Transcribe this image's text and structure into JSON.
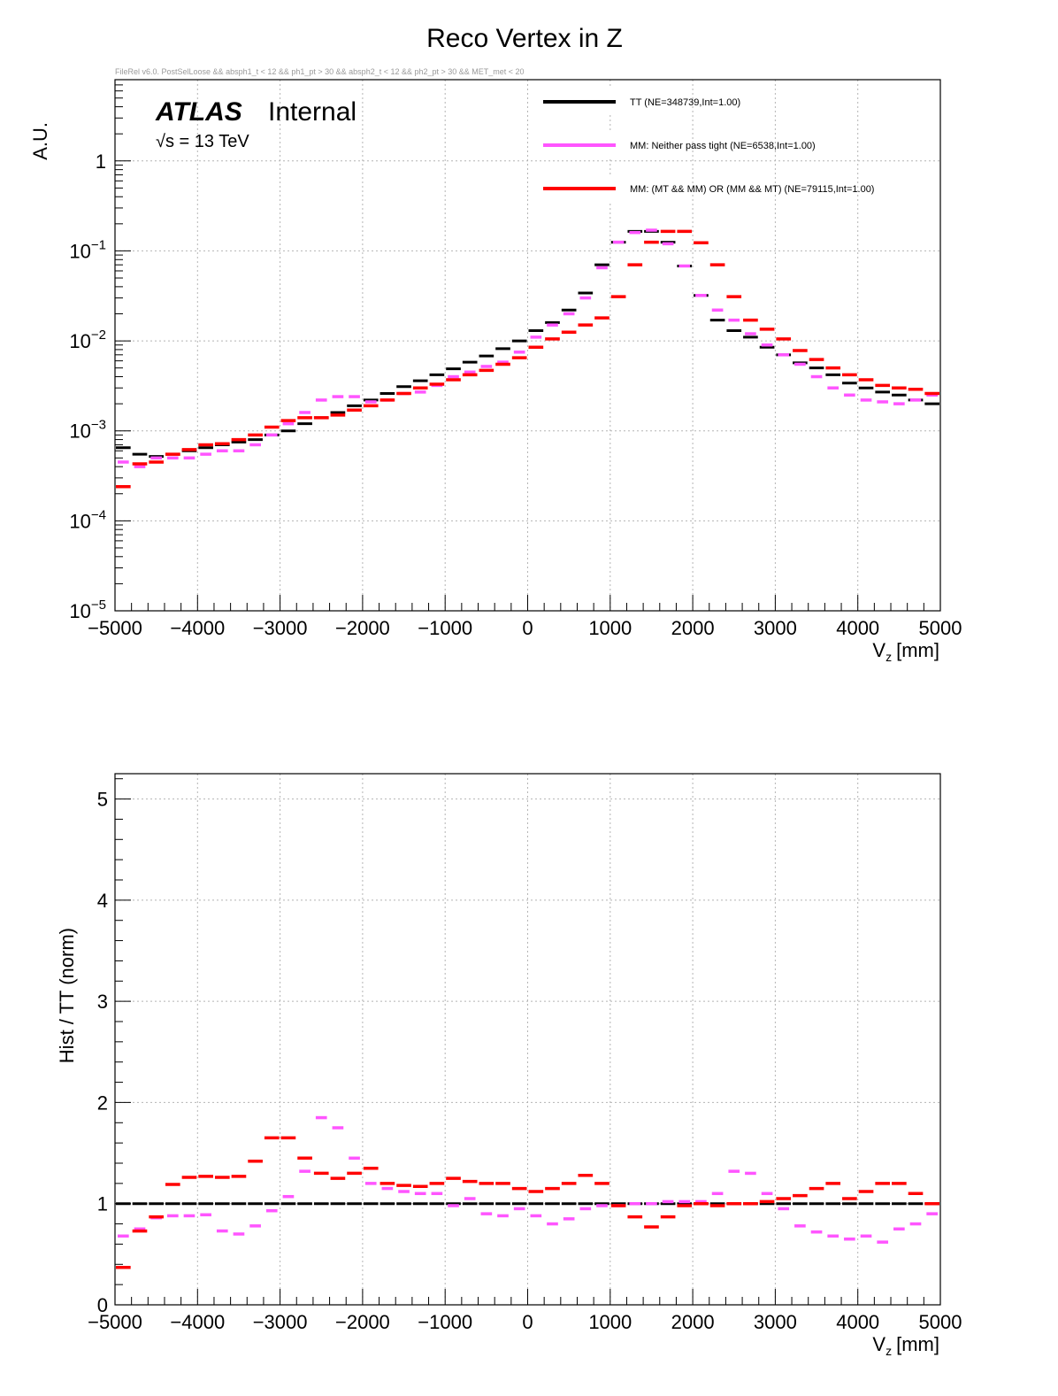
{
  "title": "Reco Vertex in Z",
  "cut_text": "FileRel v6.0. PostSelLoose && absph1_t < 12 && ph1_pt > 30 && absph2_t < 12 && ph2_pt > 30 && MET_met < 20",
  "atlas": {
    "label": "ATLAS",
    "status": "Internal",
    "energy": "√s = 13 TeV"
  },
  "colors": {
    "tt": "#000000",
    "mm_neither": "#ff55ff",
    "mm_mixed": "#ff0000",
    "grid": "#b4b4b4",
    "frame": "#000000"
  },
  "legend": [
    {
      "key": "tt",
      "label": "TT (NE=348739,Int=1.00)"
    },
    {
      "key": "mm_neither",
      "label": "MM: Neither pass tight (NE=6538,Int=1.00)"
    },
    {
      "key": "mm_mixed",
      "label": "MM: (MT && MM) OR (MM && MT) (NE=79115,Int=1.00)"
    }
  ],
  "chart_data": [
    {
      "type": "histogram",
      "title": "Reco Vertex in Z",
      "xlabel_main": "V",
      "xlabel_sub": "z",
      "xlabel_unit": "[mm]",
      "ylabel": "A.U.",
      "yscale": "log",
      "xlim": [
        -5000,
        5000
      ],
      "ylim": [
        1e-05,
        8
      ],
      "grid": true,
      "xticks": [
        -5000,
        -4000,
        -3000,
        -2000,
        -1000,
        0,
        1000,
        2000,
        3000,
        4000,
        5000
      ],
      "xtick_labels": [
        "−5000",
        "−4000",
        "−3000",
        "−2000",
        "−1000",
        "0",
        "1000",
        "2000",
        "3000",
        "4000",
        "5000"
      ],
      "yticks": [
        1e-05,
        0.0001,
        0.001,
        0.01,
        0.1,
        1
      ],
      "ytick_labels": [
        {
          "base": "10",
          "exp": "−5"
        },
        {
          "base": "10",
          "exp": "−4"
        },
        {
          "base": "10",
          "exp": "−3"
        },
        {
          "base": "10",
          "exp": "−2"
        },
        {
          "base": "10",
          "exp": "−1"
        },
        {
          "base": "1",
          "exp": ""
        }
      ],
      "bins": {
        "start": -5000,
        "width": 200,
        "count": 50
      },
      "series": [
        {
          "key": "tt",
          "name": "TT (NE=348739,Int=1.00)",
          "values": [
            0.00065,
            0.00055,
            0.00052,
            0.00055,
            0.0006,
            0.00065,
            0.0007,
            0.00075,
            0.0008,
            0.0009,
            0.001,
            0.0012,
            0.0014,
            0.0016,
            0.0019,
            0.0022,
            0.0026,
            0.0031,
            0.0036,
            0.0042,
            0.0049,
            0.0058,
            0.0068,
            0.0082,
            0.01,
            0.013,
            0.016,
            0.022,
            0.034,
            0.07,
            0.125,
            0.165,
            0.165,
            0.125,
            0.068,
            0.032,
            0.017,
            0.013,
            0.011,
            0.0085,
            0.007,
            0.0057,
            0.005,
            0.0042,
            0.0034,
            0.003,
            0.0027,
            0.0025,
            0.0022,
            0.002
          ]
        },
        {
          "key": "mm_neither",
          "name": "MM: Neither pass tight (NE=6538,Int=1.00)",
          "values": [
            0.00045,
            0.0004,
            0.0005,
            0.0005,
            0.0005,
            0.00055,
            0.0006,
            0.0006,
            0.0007,
            0.0009,
            0.0012,
            0.0016,
            0.0022,
            0.0024,
            0.0024,
            0.0021,
            0.0022,
            0.0026,
            0.0027,
            0.0032,
            0.004,
            0.0045,
            0.0052,
            0.0058,
            0.0075,
            0.011,
            0.015,
            0.02,
            0.03,
            0.065,
            0.125,
            0.16,
            0.17,
            0.12,
            0.068,
            0.032,
            0.022,
            0.017,
            0.012,
            0.009,
            0.007,
            0.0055,
            0.004,
            0.003,
            0.0025,
            0.0022,
            0.0021,
            0.002,
            0.0022,
            0.0025
          ]
        },
        {
          "key": "mm_mixed",
          "name": "MM: (MT && MM) OR (MM && MT) (NE=79115,Int=1.00)",
          "values": [
            0.00024,
            0.00043,
            0.00045,
            0.00055,
            0.00062,
            0.0007,
            0.00072,
            0.0008,
            0.0009,
            0.0011,
            0.0013,
            0.0014,
            0.0014,
            0.0015,
            0.0017,
            0.0019,
            0.0022,
            0.0026,
            0.003,
            0.0033,
            0.0037,
            0.0042,
            0.0047,
            0.0055,
            0.0065,
            0.0085,
            0.0105,
            0.0125,
            0.015,
            0.018,
            0.031,
            0.07,
            0.125,
            0.165,
            0.165,
            0.123,
            0.07,
            0.031,
            0.017,
            0.0135,
            0.0105,
            0.0078,
            0.0062,
            0.005,
            0.0042,
            0.0037,
            0.0032,
            0.003,
            0.0029,
            0.0026
          ]
        }
      ]
    },
    {
      "type": "histogram",
      "xlabel_main": "V",
      "xlabel_sub": "z",
      "xlabel_unit": "[mm]",
      "ylabel": "Hist / TT (norm)",
      "yscale": "linear",
      "xlim": [
        -5000,
        5000
      ],
      "ylim": [
        0,
        5.25
      ],
      "grid": true,
      "xticks": [
        -5000,
        -4000,
        -3000,
        -2000,
        -1000,
        0,
        1000,
        2000,
        3000,
        4000,
        5000
      ],
      "xtick_labels": [
        "−5000",
        "−4000",
        "−3000",
        "−2000",
        "−1000",
        "0",
        "1000",
        "2000",
        "3000",
        "4000",
        "5000"
      ],
      "yticks": [
        0,
        1,
        2,
        3,
        4,
        5
      ],
      "ytick_labels": [
        "0",
        "1",
        "2",
        "3",
        "4",
        "5"
      ],
      "bins": {
        "start": -5000,
        "width": 200,
        "count": 50
      },
      "series": [
        {
          "key": "tt",
          "name": "TT",
          "values": [
            1,
            1,
            1,
            1,
            1,
            1,
            1,
            1,
            1,
            1,
            1,
            1,
            1,
            1,
            1,
            1,
            1,
            1,
            1,
            1,
            1,
            1,
            1,
            1,
            1,
            1,
            1,
            1,
            1,
            1,
            1,
            1,
            1,
            1,
            1,
            1,
            1,
            1,
            1,
            1,
            1,
            1,
            1,
            1,
            1,
            1,
            1,
            1,
            1,
            1
          ]
        },
        {
          "key": "mm_neither",
          "name": "MM: Neither pass tight",
          "values": [
            0.68,
            0.75,
            0.86,
            0.88,
            0.88,
            0.89,
            0.73,
            0.7,
            0.78,
            0.93,
            1.07,
            1.32,
            1.85,
            1.75,
            1.45,
            1.2,
            1.15,
            1.12,
            1.1,
            1.1,
            0.98,
            1.05,
            0.9,
            0.88,
            0.95,
            0.88,
            0.8,
            0.85,
            0.95,
            0.98,
            0.98,
            1.0,
            1.0,
            1.02,
            1.02,
            1.02,
            1.1,
            1.32,
            1.3,
            1.1,
            0.95,
            0.78,
            0.72,
            0.68,
            0.65,
            0.68,
            0.62,
            0.75,
            0.8,
            0.9
          ]
        },
        {
          "key": "mm_mixed",
          "name": "MM: (MT && MM) OR (MM && MT)",
          "values": [
            0.37,
            0.73,
            0.87,
            1.19,
            1.26,
            1.27,
            1.26,
            1.27,
            1.42,
            1.65,
            1.65,
            1.45,
            1.3,
            1.25,
            1.3,
            1.35,
            1.2,
            1.18,
            1.17,
            1.2,
            1.25,
            1.22,
            1.2,
            1.2,
            1.15,
            1.12,
            1.15,
            1.2,
            1.28,
            1.2,
            0.98,
            0.87,
            0.77,
            0.87,
            0.98,
            1.0,
            0.98,
            1.0,
            1.0,
            1.02,
            1.05,
            1.08,
            1.15,
            1.2,
            1.05,
            1.12,
            1.2,
            1.2,
            1.1,
            1.0
          ]
        }
      ]
    }
  ]
}
